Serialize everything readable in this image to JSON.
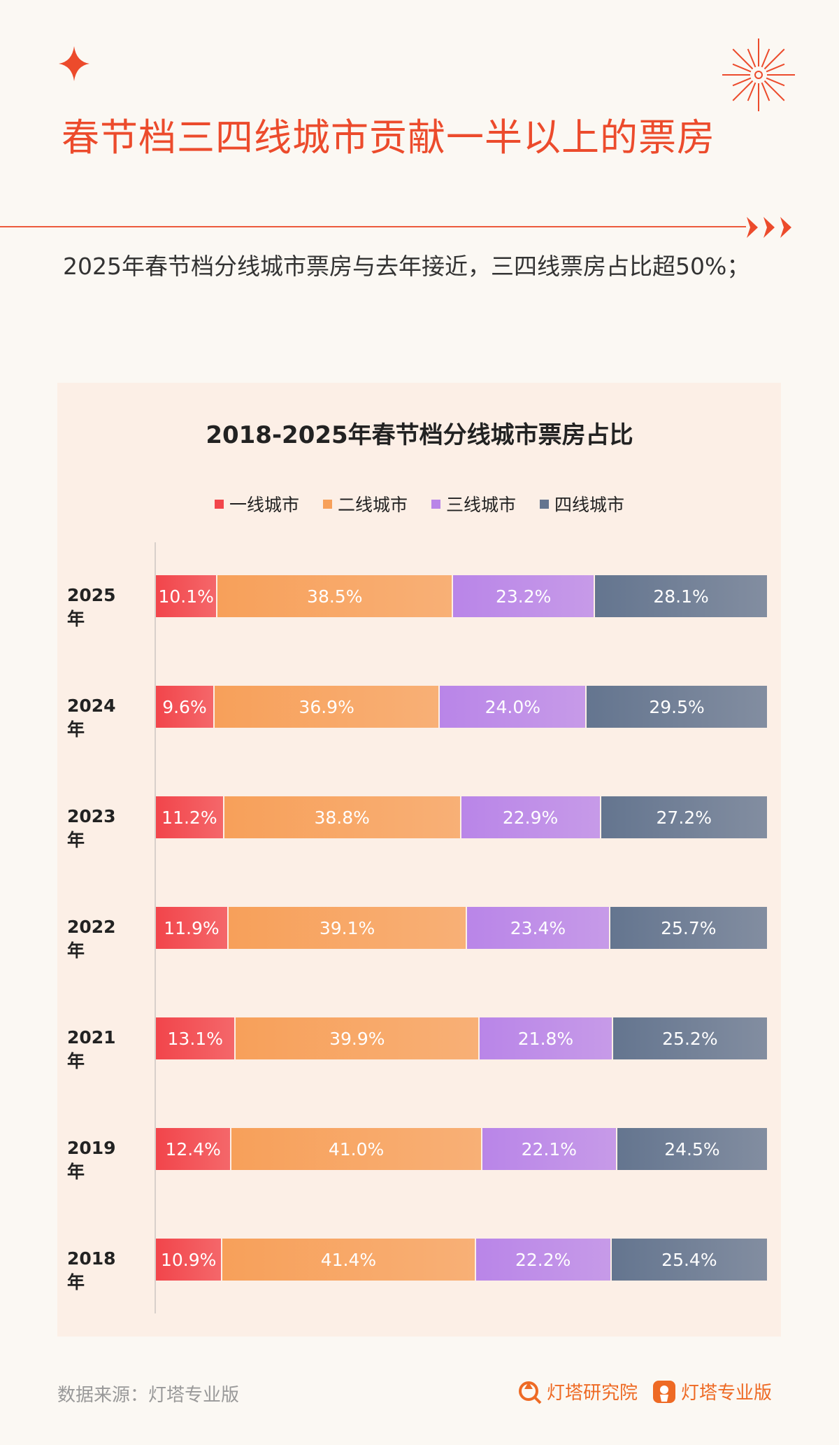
{
  "header": {
    "title": "春节档三四线城市贡献一半以上的票房",
    "subtitle": "2025年春节档分线城市票房与去年接近，三四线票房占比超50%；",
    "accent_color": "#ec4b2c"
  },
  "chart_data": {
    "type": "bar",
    "orientation": "horizontal-stacked-100",
    "title": "2018-2025年春节档分线城市票房占比",
    "legend_position": "top",
    "categories": [
      "2025年",
      "2024年",
      "2023年",
      "2022年",
      "2021年",
      "2019年",
      "2018年"
    ],
    "series": [
      {
        "name": "一线城市",
        "color": "#f2454b",
        "values": [
          10.1,
          9.6,
          11.2,
          11.9,
          13.1,
          12.4,
          10.9
        ]
      },
      {
        "name": "二线城市",
        "color": "#f7a05a",
        "values": [
          38.5,
          36.9,
          38.8,
          39.1,
          39.9,
          41.0,
          41.4
        ]
      },
      {
        "name": "三线城市",
        "color": "#b985e8",
        "values": [
          23.2,
          24.0,
          22.9,
          23.4,
          21.8,
          22.1,
          22.2
        ]
      },
      {
        "name": "四线城市",
        "color": "#64758f",
        "values": [
          28.1,
          29.5,
          27.2,
          25.7,
          25.2,
          24.5,
          25.4
        ]
      }
    ],
    "value_suffix": "%"
  },
  "footer": {
    "source": "数据来源：灯塔专业版",
    "brand1": "灯塔研究院",
    "brand2": "灯塔专业版"
  }
}
